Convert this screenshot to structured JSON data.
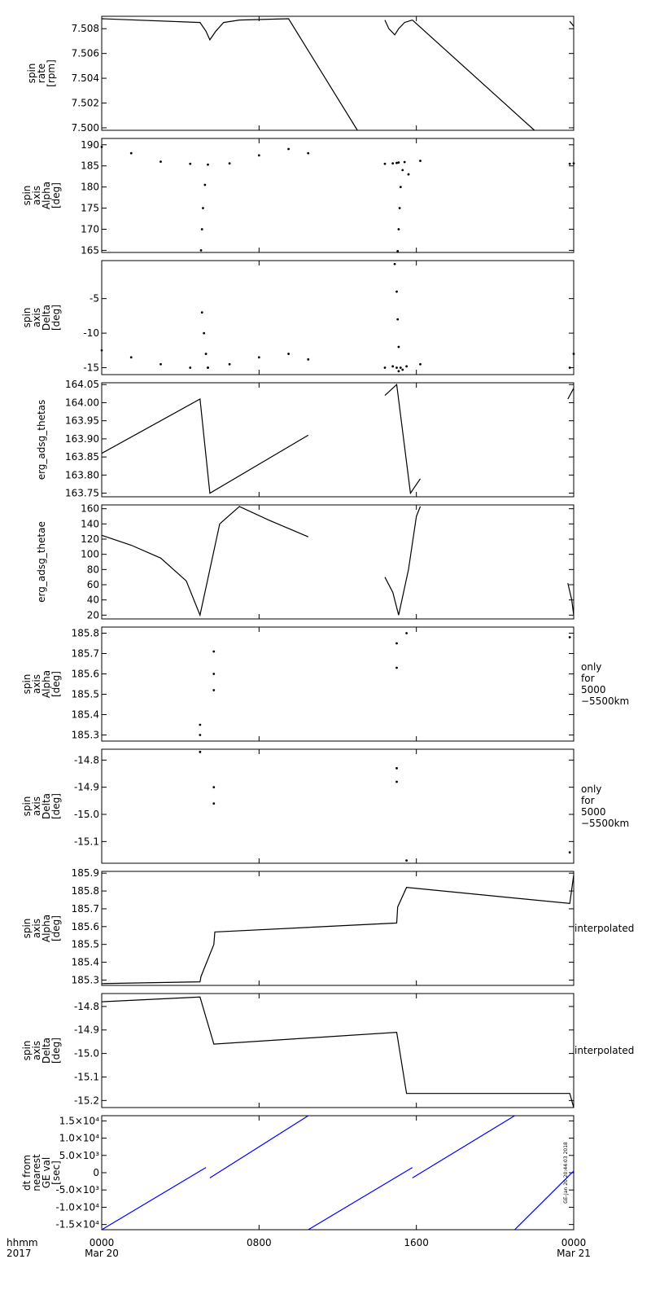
{
  "chart_data": [
    {
      "type": "line",
      "ylabel": [
        "spin",
        "rate",
        "[rpm]"
      ],
      "ylim": [
        7.4998,
        7.509
      ],
      "yticks": [
        "7.508",
        "7.506",
        "7.504",
        "7.502",
        "7.500"
      ],
      "ytick_values": [
        7.508,
        7.506,
        7.504,
        7.502,
        7.5
      ],
      "series": [
        {
          "x": [
            0.0,
            5.0,
            5.3,
            5.5,
            5.8,
            6.2,
            7.0,
            9.5,
            13.0
          ],
          "y": [
            7.5088,
            7.5085,
            7.5078,
            7.5071,
            7.5078,
            7.5085,
            7.5087,
            7.5088,
            7.4998
          ]
        },
        {
          "x": [
            14.4,
            14.6,
            14.9,
            15.1,
            15.4,
            15.8
          ],
          "y": [
            7.5087,
            7.508,
            7.5075,
            7.508,
            7.5085,
            7.5087
          ]
        },
        {
          "x": [
            15.8,
            22.0
          ],
          "y": [
            7.5087,
            7.4998
          ]
        },
        {
          "x": [
            23.8,
            24.0
          ],
          "y": [
            7.5086,
            7.5082
          ]
        }
      ]
    },
    {
      "type": "scatter",
      "ylabel": [
        "spin",
        "axis",
        "Alpha",
        "[deg]"
      ],
      "ylim": [
        164.5,
        191.5
      ],
      "yticks": [
        "190",
        "185",
        "180",
        "175",
        "170",
        "165"
      ],
      "ytick_values": [
        190,
        185,
        180,
        175,
        170,
        165
      ],
      "series": [
        {
          "x": [
            0.0,
            1.5,
            3.0,
            4.5,
            5.4,
            6.5,
            8.0,
            9.5,
            10.5
          ],
          "y": [
            189.5,
            188.0,
            186.0,
            185.5,
            185.3,
            185.6,
            187.5,
            189.0,
            188.0
          ]
        },
        {
          "x": [
            5.05,
            5.1,
            5.15,
            5.25
          ],
          "y": [
            165.0,
            170.0,
            175.0,
            180.5
          ]
        },
        {
          "x": [
            14.4,
            14.8,
            15.0,
            15.1,
            15.4,
            15.6,
            16.2
          ],
          "y": [
            185.5,
            185.6,
            185.7,
            185.8,
            185.9,
            183.0,
            186.2
          ]
        },
        {
          "x": [
            15.05,
            15.1,
            15.15,
            15.2,
            15.3
          ],
          "y": [
            164.8,
            170.0,
            175.0,
            180.0,
            184.0
          ]
        },
        {
          "x": [
            23.8,
            24.0
          ],
          "y": [
            185.5,
            185.6
          ]
        }
      ]
    },
    {
      "type": "scatter",
      "ylabel": [
        "spin",
        "axis",
        "Delta",
        "[deg]"
      ],
      "ylim": [
        -16.0,
        0.5
      ],
      "yticks": [
        "-5",
        "-10",
        "-15"
      ],
      "ytick_values": [
        -5,
        -10,
        -15
      ],
      "series": [
        {
          "x": [
            0.0,
            1.5,
            3.0,
            4.5,
            5.4,
            6.5,
            8.0,
            9.5,
            10.5
          ],
          "y": [
            -12.5,
            -13.5,
            -14.5,
            -15.0,
            -15.0,
            -14.5,
            -13.5,
            -13.0,
            -13.8
          ]
        },
        {
          "x": [
            5.1,
            5.2,
            5.3,
            5.4
          ],
          "y": [
            -7.0,
            -10.0,
            -13.0,
            -15.0
          ]
        },
        {
          "x": [
            14.4,
            14.8,
            15.0,
            15.1,
            15.3,
            15.5,
            16.2
          ],
          "y": [
            -15.0,
            -14.8,
            -15.0,
            -15.5,
            -15.3,
            -14.8,
            -14.5
          ]
        },
        {
          "x": [
            14.9,
            15.0,
            15.05,
            15.1,
            15.2
          ],
          "y": [
            0.0,
            -4.0,
            -8.0,
            -12.0,
            -15.0
          ]
        },
        {
          "x": [
            23.8,
            24.0
          ],
          "y": [
            -15.0,
            -13.0
          ]
        }
      ]
    },
    {
      "type": "line",
      "ylabel": [
        "erg_adsg_thetas"
      ],
      "ylim": [
        163.74,
        164.055
      ],
      "yticks": [
        "164.05",
        "164.00",
        "163.95",
        "163.90",
        "163.85",
        "163.80",
        "163.75"
      ],
      "ytick_values": [
        164.05,
        164.0,
        163.95,
        163.9,
        163.85,
        163.8,
        163.75
      ],
      "series": [
        {
          "x": [
            0.0,
            5.0,
            5.5,
            10.5
          ],
          "y": [
            163.86,
            164.01,
            163.75,
            163.91
          ]
        },
        {
          "x": [
            14.4,
            15.0,
            15.7,
            16.2
          ],
          "y": [
            164.02,
            164.05,
            163.75,
            163.79
          ]
        },
        {
          "x": [
            23.7,
            24.0
          ],
          "y": [
            164.01,
            164.04
          ]
        }
      ]
    },
    {
      "type": "line",
      "ylabel": [
        "erg_adsg_thetae"
      ],
      "ylim": [
        15,
        165
      ],
      "yticks": [
        "160",
        "140",
        "120",
        "100",
        "80",
        "60",
        "40",
        "20"
      ],
      "ytick_values": [
        160,
        140,
        120,
        100,
        80,
        60,
        40,
        20
      ],
      "series": [
        {
          "x": [
            0.0,
            1.5,
            3.0,
            4.3,
            5.0,
            5.5,
            6.0,
            7.0,
            8.5,
            10.5
          ],
          "y": [
            125,
            112,
            95,
            65,
            20,
            80,
            140,
            163,
            145,
            123
          ]
        },
        {
          "x": [
            14.4,
            14.8,
            15.1,
            15.6,
            16.0,
            16.2
          ],
          "y": [
            70,
            50,
            20,
            80,
            150,
            163
          ]
        },
        {
          "x": [
            23.7,
            23.9,
            24.0
          ],
          "y": [
            62,
            40,
            20
          ]
        }
      ]
    },
    {
      "type": "scatter",
      "ylabel": [
        "spin",
        "axis",
        "Alpha",
        "[deg]"
      ],
      "side_note": [
        "only",
        "for",
        "5000",
        "−5500km"
      ],
      "ylim": [
        185.27,
        185.83
      ],
      "yticks": [
        "185.8",
        "185.7",
        "185.6",
        "185.5",
        "185.4",
        "185.3"
      ],
      "ytick_values": [
        185.8,
        185.7,
        185.6,
        185.5,
        185.4,
        185.3
      ],
      "series": [
        {
          "x": [
            5.0,
            5.0,
            5.7,
            5.7,
            5.7,
            15.0,
            15.0,
            15.5,
            23.8
          ],
          "y": [
            185.35,
            185.3,
            185.71,
            185.6,
            185.52,
            185.75,
            185.63,
            185.8,
            185.78
          ]
        }
      ]
    },
    {
      "type": "scatter",
      "ylabel": [
        "spin",
        "axis",
        "Delta",
        "[deg]"
      ],
      "side_note": [
        "only",
        "for",
        "5000",
        "−5500km"
      ],
      "ylim": [
        -15.18,
        -14.76
      ],
      "yticks": [
        "-14.8",
        "-14.9",
        "-15.0",
        "-15.1"
      ],
      "ytick_values": [
        -14.8,
        -14.9,
        -15.0,
        -15.1
      ],
      "series": [
        {
          "x": [
            5.0,
            5.7,
            5.7,
            15.0,
            15.0,
            15.5,
            23.8
          ],
          "y": [
            -14.77,
            -14.9,
            -14.96,
            -14.83,
            -14.88,
            -15.17,
            -15.14
          ]
        }
      ]
    },
    {
      "type": "line",
      "ylabel": [
        "spin",
        "axis",
        "Alpha",
        "[deg]"
      ],
      "side_note": [
        "interpolated"
      ],
      "ylim": [
        185.27,
        185.91
      ],
      "yticks": [
        "185.9",
        "185.8",
        "185.7",
        "185.6",
        "185.5",
        "185.4",
        "185.3"
      ],
      "ytick_values": [
        185.9,
        185.8,
        185.7,
        185.6,
        185.5,
        185.4,
        185.3
      ],
      "series": [
        {
          "x": [
            0.0,
            5.0,
            5.05,
            5.7,
            5.75,
            15.0,
            15.05,
            15.5,
            23.8,
            24.0
          ],
          "y": [
            185.28,
            185.29,
            185.32,
            185.5,
            185.57,
            185.62,
            185.71,
            185.82,
            185.73,
            185.89
          ]
        }
      ]
    },
    {
      "type": "line",
      "ylabel": [
        "spin",
        "axis",
        "Delta",
        "[deg]"
      ],
      "side_note": [
        "interpolated"
      ],
      "ylim": [
        -15.23,
        -14.745
      ],
      "yticks": [
        "-14.8",
        "-14.9",
        "-15.0",
        "-15.1",
        "-15.2"
      ],
      "ytick_values": [
        -14.8,
        -14.9,
        -15.0,
        -15.1,
        -15.2
      ],
      "series": [
        {
          "x": [
            0.0,
            5.0,
            5.7,
            15.0,
            15.5,
            23.8,
            24.0
          ],
          "y": [
            -14.78,
            -14.76,
            -14.96,
            -14.91,
            -15.17,
            -15.17,
            -15.23
          ]
        }
      ]
    },
    {
      "type": "line",
      "ylabel": [
        "dt from",
        "nearest",
        "GE val",
        "[sec]"
      ],
      "ylim": [
        -16500,
        16500
      ],
      "yticks": [
        "1.5×10⁴",
        "1.0×10⁴",
        "5.0×10³",
        "0",
        "-5.0×10³",
        "-1.0×10⁴",
        "-1.5×10⁴"
      ],
      "ytick_values": [
        15000,
        10000,
        5000,
        0,
        -5000,
        -10000,
        -15000
      ],
      "color": "#0000ff",
      "series": [
        {
          "x": [
            0.0,
            5.3
          ],
          "y": [
            -16500,
            1500
          ]
        },
        {
          "x": [
            5.5,
            10.5
          ],
          "y": [
            -1500,
            16500
          ]
        },
        {
          "x": [
            10.5,
            15.8
          ],
          "y": [
            -16500,
            1500
          ]
        },
        {
          "x": [
            15.8,
            21.0
          ],
          "y": [
            -1500,
            16500
          ]
        },
        {
          "x": [
            21.0,
            24.0
          ],
          "y": [
            -16500,
            500
          ]
        }
      ],
      "stamp": "GE-Jan 20 20:44:03 2018"
    }
  ],
  "x_axis": {
    "range": [
      0,
      24
    ],
    "corner_label": [
      "hhmm",
      "2017"
    ],
    "ticks": [
      {
        "value": 0,
        "line1": "0000",
        "line2": "Mar 20"
      },
      {
        "value": 8,
        "line1": "0800",
        "line2": ""
      },
      {
        "value": 16,
        "line1": "1600",
        "line2": ""
      },
      {
        "value": 24,
        "line1": "0000",
        "line2": "Mar 21"
      }
    ]
  }
}
